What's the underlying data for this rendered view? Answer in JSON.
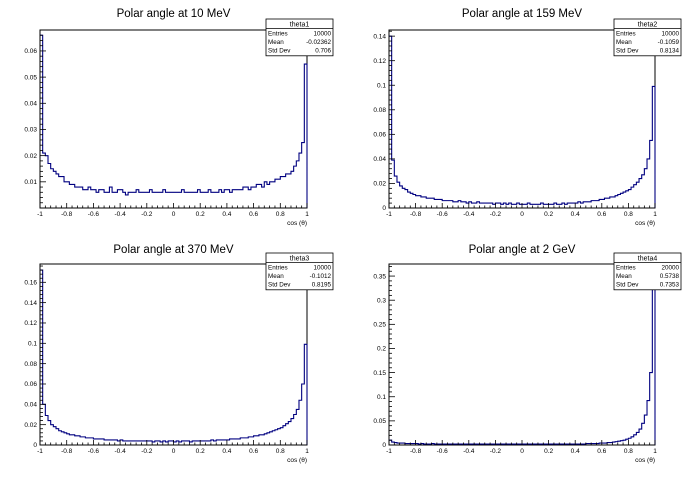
{
  "chart_data": [
    {
      "type": "histogram",
      "title": "Polar angle at 10 MeV",
      "xlabel": "cos (θ)",
      "ylabel": "",
      "xlim": [
        -1,
        1
      ],
      "ylim": [
        0,
        0.068
      ],
      "yticks": [
        0.01,
        0.02,
        0.03,
        0.04,
        0.05,
        0.06
      ],
      "ytick_labels": [
        "0.01",
        "0.02",
        "0.03",
        "0.04",
        "0.05",
        "0.06"
      ],
      "xticks": [
        -1,
        -0.8,
        -0.6,
        -0.4,
        -0.2,
        0,
        0.2,
        0.4,
        0.6,
        0.8,
        1
      ],
      "xtick_labels": [
        "-1",
        "-0.8",
        "-0.6",
        "-0.4",
        "-0.2",
        "0",
        "0.2",
        "0.4",
        "0.6",
        "0.8",
        "1"
      ],
      "grid": false,
      "line_color": "#000080",
      "stats": {
        "name": "theta1",
        "rows": [
          [
            "Entries",
            "10000"
          ],
          [
            "Mean",
            "-0.02362"
          ],
          [
            "Std Dev",
            "0.706"
          ]
        ]
      },
      "values": [
        0.066,
        0.021,
        0.02,
        0.017,
        0.015,
        0.014,
        0.013,
        0.012,
        0.012,
        0.01,
        0.01,
        0.009,
        0.009,
        0.008,
        0.008,
        0.008,
        0.007,
        0.007,
        0.008,
        0.007,
        0.007,
        0.006,
        0.007,
        0.007,
        0.006,
        0.006,
        0.008,
        0.006,
        0.006,
        0.007,
        0.007,
        0.006,
        0.005,
        0.006,
        0.006,
        0.006,
        0.007,
        0.006,
        0.006,
        0.006,
        0.006,
        0.007,
        0.006,
        0.006,
        0.006,
        0.006,
        0.007,
        0.006,
        0.006,
        0.006,
        0.006,
        0.006,
        0.006,
        0.007,
        0.006,
        0.006,
        0.006,
        0.006,
        0.006,
        0.007,
        0.006,
        0.006,
        0.006,
        0.007,
        0.006,
        0.006,
        0.006,
        0.007,
        0.006,
        0.007,
        0.007,
        0.006,
        0.007,
        0.007,
        0.007,
        0.007,
        0.008,
        0.008,
        0.007,
        0.008,
        0.008,
        0.009,
        0.009,
        0.008,
        0.01,
        0.009,
        0.01,
        0.01,
        0.011,
        0.011,
        0.012,
        0.012,
        0.013,
        0.013,
        0.014,
        0.016,
        0.018,
        0.021,
        0.025,
        0.055
      ]
    },
    {
      "type": "histogram",
      "title": "Polar angle at 159 MeV",
      "xlabel": "cos (θ)",
      "ylabel": "",
      "xlim": [
        -1,
        1
      ],
      "ylim": [
        0,
        0.145
      ],
      "yticks": [
        0,
        0.02,
        0.04,
        0.06,
        0.08,
        0.1,
        0.12,
        0.14
      ],
      "ytick_labels": [
        "0",
        "0.02",
        "0.04",
        "0.06",
        "0.08",
        "0.1",
        "0.12",
        "0.14"
      ],
      "xticks": [
        -1,
        -0.8,
        -0.6,
        -0.4,
        -0.2,
        0,
        0.2,
        0.4,
        0.6,
        0.8,
        1
      ],
      "xtick_labels": [
        "-1",
        "-0.8",
        "-0.6",
        "-0.4",
        "-0.2",
        "0",
        "0.2",
        "0.4",
        "0.6",
        "0.8",
        "1"
      ],
      "grid": false,
      "line_color": "#000080",
      "stats": {
        "name": "theta2",
        "rows": [
          [
            "Entries",
            "10000"
          ],
          [
            "Mean",
            "-0.1059"
          ],
          [
            "Std Dev",
            "0.8134"
          ]
        ]
      },
      "values": [
        0.14,
        0.039,
        0.026,
        0.021,
        0.018,
        0.016,
        0.015,
        0.013,
        0.012,
        0.011,
        0.01,
        0.01,
        0.009,
        0.009,
        0.008,
        0.008,
        0.008,
        0.007,
        0.007,
        0.007,
        0.006,
        0.006,
        0.006,
        0.006,
        0.005,
        0.005,
        0.006,
        0.005,
        0.005,
        0.004,
        0.005,
        0.004,
        0.004,
        0.005,
        0.004,
        0.004,
        0.004,
        0.004,
        0.004,
        0.003,
        0.004,
        0.004,
        0.003,
        0.004,
        0.003,
        0.004,
        0.003,
        0.003,
        0.004,
        0.003,
        0.003,
        0.003,
        0.004,
        0.003,
        0.003,
        0.003,
        0.003,
        0.004,
        0.003,
        0.003,
        0.003,
        0.003,
        0.004,
        0.003,
        0.003,
        0.004,
        0.003,
        0.004,
        0.004,
        0.004,
        0.004,
        0.005,
        0.004,
        0.005,
        0.005,
        0.005,
        0.006,
        0.006,
        0.006,
        0.007,
        0.007,
        0.008,
        0.008,
        0.009,
        0.009,
        0.01,
        0.011,
        0.012,
        0.013,
        0.014,
        0.015,
        0.017,
        0.019,
        0.021,
        0.024,
        0.027,
        0.032,
        0.04,
        0.055,
        0.099
      ]
    },
    {
      "type": "histogram",
      "title": "Polar angle at 370 MeV",
      "xlabel": "cos (θ)",
      "ylabel": "",
      "xlim": [
        -1,
        1
      ],
      "ylim": [
        0,
        0.178
      ],
      "yticks": [
        0,
        0.02,
        0.04,
        0.06,
        0.08,
        0.1,
        0.12,
        0.14,
        0.16
      ],
      "ytick_labels": [
        "0",
        "0.02",
        "0.04",
        "0.06",
        "0.08",
        "0.1",
        "0.12",
        "0.14",
        "0.16"
      ],
      "xticks": [
        -1,
        -0.8,
        -0.6,
        -0.4,
        -0.2,
        0,
        0.2,
        0.4,
        0.6,
        0.8,
        1
      ],
      "xtick_labels": [
        "-1",
        "-0.8",
        "-0.6",
        "-0.4",
        "-0.2",
        "0",
        "0.2",
        "0.4",
        "0.6",
        "0.8",
        "1"
      ],
      "grid": false,
      "line_color": "#000080",
      "stats": {
        "name": "theta3",
        "rows": [
          [
            "Entries",
            "10000"
          ],
          [
            "Mean",
            "-0.1012"
          ],
          [
            "Std Dev",
            "0.8195"
          ]
        ]
      },
      "values": [
        0.172,
        0.04,
        0.029,
        0.024,
        0.02,
        0.018,
        0.016,
        0.014,
        0.013,
        0.012,
        0.011,
        0.01,
        0.01,
        0.009,
        0.009,
        0.008,
        0.008,
        0.007,
        0.007,
        0.007,
        0.006,
        0.006,
        0.006,
        0.006,
        0.005,
        0.005,
        0.005,
        0.005,
        0.005,
        0.004,
        0.005,
        0.004,
        0.004,
        0.004,
        0.004,
        0.004,
        0.004,
        0.004,
        0.004,
        0.004,
        0.004,
        0.004,
        0.003,
        0.004,
        0.004,
        0.003,
        0.004,
        0.003,
        0.004,
        0.004,
        0.003,
        0.004,
        0.003,
        0.004,
        0.004,
        0.004,
        0.003,
        0.004,
        0.004,
        0.004,
        0.004,
        0.004,
        0.004,
        0.004,
        0.005,
        0.004,
        0.005,
        0.005,
        0.005,
        0.005,
        0.005,
        0.006,
        0.006,
        0.006,
        0.006,
        0.007,
        0.007,
        0.007,
        0.008,
        0.008,
        0.009,
        0.009,
        0.01,
        0.01,
        0.011,
        0.012,
        0.013,
        0.014,
        0.015,
        0.016,
        0.017,
        0.019,
        0.021,
        0.023,
        0.026,
        0.03,
        0.035,
        0.044,
        0.06,
        0.099
      ]
    },
    {
      "type": "histogram",
      "title": "Polar angle at 2 GeV",
      "xlabel": "cos (θ)",
      "ylabel": "",
      "xlim": [
        -1,
        1
      ],
      "ylim": [
        0,
        0.375
      ],
      "yticks": [
        0,
        0.05,
        0.1,
        0.15,
        0.2,
        0.25,
        0.3,
        0.35
      ],
      "ytick_labels": [
        "0",
        "0.05",
        "0.1",
        "0.15",
        "0.2",
        "0.25",
        "0.3",
        "0.35"
      ],
      "xticks": [
        -1,
        -0.8,
        -0.6,
        -0.4,
        -0.2,
        0,
        0.2,
        0.4,
        0.6,
        0.8,
        1
      ],
      "xtick_labels": [
        "-1",
        "-0.8",
        "-0.6",
        "-0.4",
        "-0.2",
        "0",
        "0.2",
        "0.4",
        "0.6",
        "0.8",
        "1"
      ],
      "grid": false,
      "line_color": "#000080",
      "stats": {
        "name": "theta4",
        "rows": [
          [
            "Entries",
            "20000"
          ],
          [
            "Mean",
            "0.5738"
          ],
          [
            "Std Dev",
            "0.7353"
          ]
        ]
      },
      "values": [
        0.01,
        0.006,
        0.005,
        0.004,
        0.004,
        0.004,
        0.003,
        0.003,
        0.003,
        0.003,
        0.003,
        0.002,
        0.003,
        0.002,
        0.002,
        0.002,
        0.003,
        0.002,
        0.002,
        0.002,
        0.002,
        0.002,
        0.002,
        0.002,
        0.002,
        0.002,
        0.002,
        0.002,
        0.002,
        0.002,
        0.002,
        0.002,
        0.002,
        0.002,
        0.002,
        0.002,
        0.002,
        0.002,
        0.002,
        0.002,
        0.002,
        0.002,
        0.002,
        0.002,
        0.002,
        0.002,
        0.002,
        0.002,
        0.002,
        0.002,
        0.002,
        0.002,
        0.002,
        0.002,
        0.002,
        0.002,
        0.002,
        0.002,
        0.002,
        0.002,
        0.002,
        0.002,
        0.002,
        0.002,
        0.002,
        0.002,
        0.002,
        0.002,
        0.002,
        0.002,
        0.002,
        0.002,
        0.002,
        0.002,
        0.003,
        0.003,
        0.003,
        0.003,
        0.003,
        0.004,
        0.004,
        0.004,
        0.005,
        0.005,
        0.006,
        0.007,
        0.008,
        0.009,
        0.01,
        0.012,
        0.014,
        0.017,
        0.021,
        0.026,
        0.033,
        0.045,
        0.062,
        0.092,
        0.15,
        0.36
      ]
    }
  ]
}
